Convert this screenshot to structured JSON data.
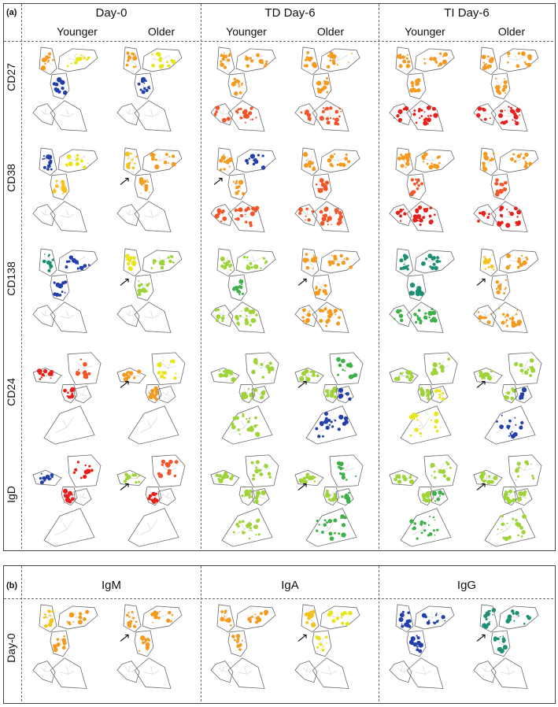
{
  "panel_a": {
    "label": "(a)",
    "columns": [
      "Day-0",
      "TD Day-6",
      "TI Day-6"
    ],
    "subcolumns": [
      "Younger",
      "Older"
    ],
    "rows": [
      "CD27",
      "CD38",
      "CD138",
      "CD24",
      "IgD"
    ]
  },
  "panel_b": {
    "label": "(b)",
    "columns": [
      "IgM",
      "IgA",
      "IgG"
    ],
    "rows": [
      "Day-0"
    ]
  },
  "colors": {
    "red": "#e8201c",
    "orange_red": "#f0562a",
    "orange": "#f39a1f",
    "yellow_orange": "#f5c21a",
    "yellow": "#e9e51b",
    "light_green": "#9fd33a",
    "green": "#3fb04a",
    "teal": "#1e8f74",
    "blue": "#2340a8",
    "outline": "#6b6b6b",
    "tree": "#cfcfcf"
  },
  "cells": [
    {
      "row": 0,
      "col": 0,
      "scheme": [
        "orange",
        "yellow",
        "blue"
      ],
      "bottom": "plain"
    },
    {
      "row": 0,
      "col": 1,
      "scheme": [
        "orange",
        "yellow",
        "blue"
      ],
      "bottom": "plain"
    },
    {
      "row": 0,
      "col": 2,
      "scheme": [
        "orange",
        "orange",
        "orange"
      ],
      "bottom": "orange_red"
    },
    {
      "row": 0,
      "col": 3,
      "scheme": [
        "orange",
        "orange",
        "orange"
      ],
      "bottom": "orange_red"
    },
    {
      "row": 0,
      "col": 4,
      "scheme": [
        "orange",
        "orange",
        "orange"
      ],
      "bottom": "red"
    },
    {
      "row": 0,
      "col": 5,
      "scheme": [
        "orange",
        "orange",
        "orange"
      ],
      "bottom": "red"
    },
    {
      "row": 1,
      "col": 0,
      "scheme": [
        "blue",
        "yellow",
        "yellow_orange"
      ],
      "bottom": "plain"
    },
    {
      "row": 1,
      "col": 1,
      "scheme": [
        "yellow_orange",
        "orange",
        "orange"
      ],
      "bottom": "plain",
      "arrows": true
    },
    {
      "row": 1,
      "col": 2,
      "scheme": [
        "orange",
        "blue",
        "orange"
      ],
      "bottom": "orange_red",
      "arrows": true
    },
    {
      "row": 1,
      "col": 3,
      "scheme": [
        "orange",
        "orange",
        "orange_red"
      ],
      "bottom": "orange_red"
    },
    {
      "row": 1,
      "col": 4,
      "scheme": [
        "orange",
        "orange",
        "orange_red"
      ],
      "bottom": "red"
    },
    {
      "row": 1,
      "col": 5,
      "scheme": [
        "orange",
        "orange",
        "orange_red"
      ],
      "bottom": "red"
    },
    {
      "row": 2,
      "col": 0,
      "scheme": [
        "teal",
        "blue",
        "blue"
      ],
      "bottom": "plain"
    },
    {
      "row": 2,
      "col": 1,
      "scheme": [
        "yellow",
        "light_green",
        "light_green"
      ],
      "bottom": "plain",
      "arrows": true
    },
    {
      "row": 2,
      "col": 2,
      "scheme": [
        "light_green",
        "light_green",
        "green"
      ],
      "bottom": "light_green"
    },
    {
      "row": 2,
      "col": 3,
      "scheme": [
        "orange",
        "orange",
        "orange"
      ],
      "bottom": "orange",
      "arrows": true
    },
    {
      "row": 2,
      "col": 4,
      "scheme": [
        "teal",
        "teal",
        "teal"
      ],
      "bottom": "green"
    },
    {
      "row": 2,
      "col": 5,
      "scheme": [
        "yellow_orange",
        "orange",
        "orange"
      ],
      "bottom": "orange",
      "arrows": true
    },
    {
      "row": 3,
      "col": 0,
      "scheme": [
        "red",
        "orange_red",
        "red"
      ],
      "bottom": "plain",
      "inv": true
    },
    {
      "row": 3,
      "col": 1,
      "scheme": [
        "orange",
        "yellow",
        "orange"
      ],
      "bottom": "plain",
      "inv": true,
      "arrows": true
    },
    {
      "row": 3,
      "col": 2,
      "scheme": [
        "light_green",
        "light_green",
        "light_green"
      ],
      "bottom": "light_green",
      "inv": true
    },
    {
      "row": 3,
      "col": 3,
      "scheme": [
        "light_green",
        "green",
        "light_green"
      ],
      "bottom": "blue",
      "inv": true,
      "arrows": true
    },
    {
      "row": 3,
      "col": 4,
      "scheme": [
        "light_green",
        "light_green",
        "light_green"
      ],
      "bottom": "yellow",
      "inv": true
    },
    {
      "row": 3,
      "col": 5,
      "scheme": [
        "light_green",
        "light_green",
        "light_green"
      ],
      "bottom": "blue",
      "inv": true,
      "arrows": true
    },
    {
      "row": 4,
      "col": 0,
      "scheme": [
        "blue",
        "red",
        "red"
      ],
      "bottom": "plain",
      "inv": true
    },
    {
      "row": 4,
      "col": 1,
      "scheme": [
        "light_green",
        "orange_red",
        "red"
      ],
      "bottom": "plain",
      "inv": true,
      "arrows": true
    },
    {
      "row": 4,
      "col": 2,
      "scheme": [
        "light_green",
        "light_green",
        "light_green"
      ],
      "bottom": "light_green",
      "inv": true
    },
    {
      "row": 4,
      "col": 3,
      "scheme": [
        "light_green",
        "green",
        "light_green"
      ],
      "bottom": "green",
      "inv": true,
      "arrows": true
    },
    {
      "row": 4,
      "col": 4,
      "scheme": [
        "light_green",
        "light_green",
        "light_green"
      ],
      "bottom": "green",
      "inv": true
    },
    {
      "row": 4,
      "col": 5,
      "scheme": [
        "light_green",
        "light_green",
        "light_green"
      ],
      "bottom": "light_green",
      "inv": true,
      "arrows": true
    }
  ],
  "cells_b": [
    {
      "col": 0,
      "scheme": [
        "yellow_orange",
        "orange",
        "orange"
      ],
      "bottom": "plain"
    },
    {
      "col": 1,
      "scheme": [
        "orange",
        "orange",
        "orange"
      ],
      "bottom": "plain",
      "arrows": true
    },
    {
      "col": 2,
      "scheme": [
        "orange",
        "orange",
        "orange"
      ],
      "bottom": "plain"
    },
    {
      "col": 3,
      "scheme": [
        "yellow_orange",
        "yellow",
        "yellow"
      ],
      "bottom": "plain",
      "arrows": true
    },
    {
      "col": 4,
      "scheme": [
        "blue",
        "blue",
        "blue"
      ],
      "bottom": "plain"
    },
    {
      "col": 5,
      "scheme": [
        "teal",
        "teal",
        "teal"
      ],
      "bottom": "plain",
      "arrows": true
    }
  ]
}
